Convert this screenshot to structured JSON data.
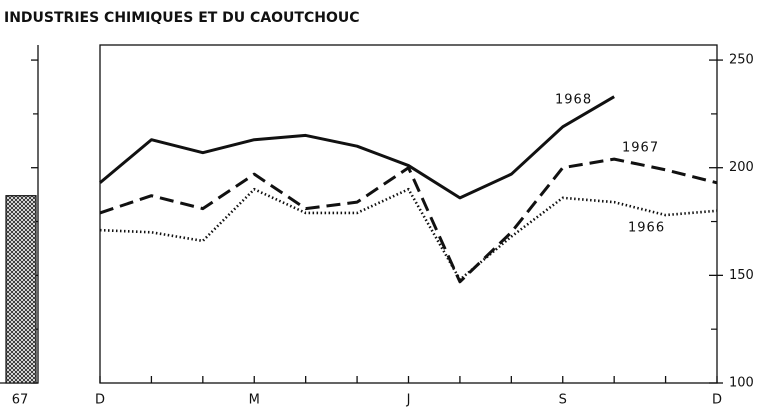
{
  "chart_data": {
    "type": "line",
    "title": "INDUSTRIES CHIMIQUES ET DU CAOUTCHOUC",
    "categories": [
      "D",
      null,
      null,
      "M",
      null,
      null,
      "J",
      null,
      null,
      "S",
      null,
      null,
      "D"
    ],
    "series": [
      {
        "name": "1968",
        "color": "#111111",
        "style": "solid",
        "values": [
          193,
          213,
          207,
          213,
          215,
          210,
          201,
          186,
          197,
          219,
          233,
          null,
          null
        ]
      },
      {
        "name": "1967",
        "color": "#111111",
        "style": "dashed",
        "values": [
          179,
          187,
          181,
          197,
          181,
          184,
          200,
          147,
          170,
          200,
          204,
          199,
          193
        ]
      },
      {
        "name": "1966",
        "color": "#111111",
        "style": "dotted",
        "values": [
          171,
          170,
          166,
          190,
          179,
          179,
          190,
          148,
          168,
          186,
          184,
          178,
          180
        ]
      }
    ],
    "annual_bar": {
      "label": "67",
      "value": 187
    },
    "ylim": [
      100,
      257
    ],
    "yticks": [
      100,
      150,
      200,
      250
    ],
    "minor_yticks": [
      125,
      175,
      225
    ],
    "grid": false
  }
}
